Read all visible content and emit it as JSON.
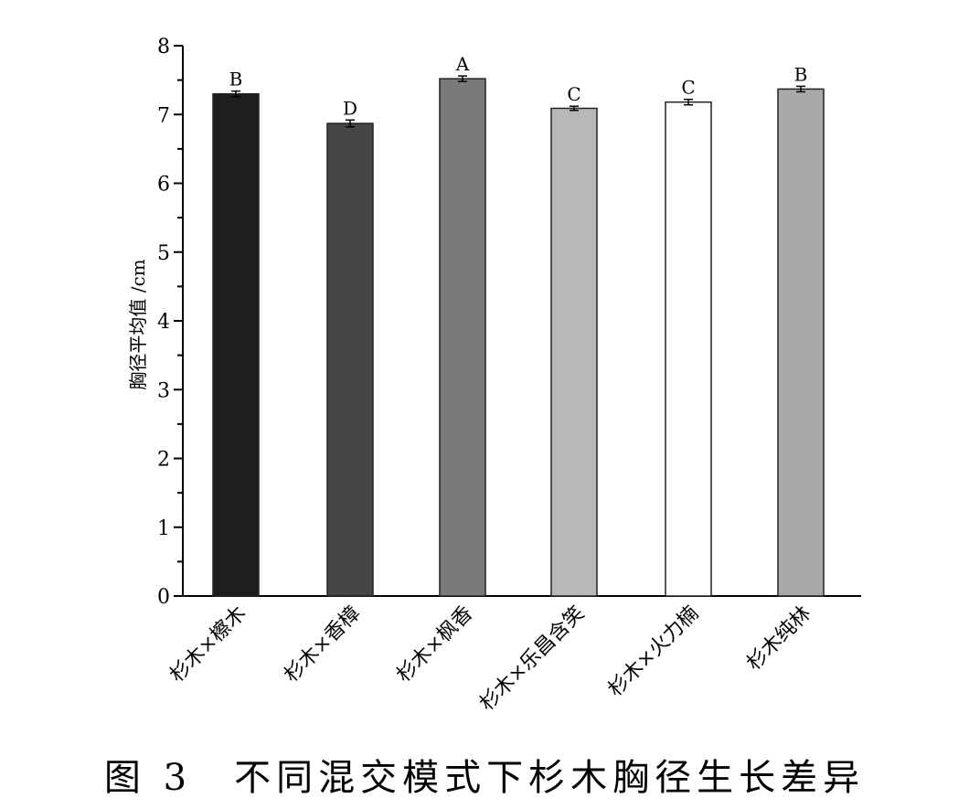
{
  "chart_data": {
    "type": "bar",
    "ylabel": "胸径平均值 /cm",
    "ylim": [
      0,
      8
    ],
    "yticks": [
      0,
      1,
      2,
      3,
      4,
      5,
      6,
      7,
      8
    ],
    "categories": [
      "杉木×檫木",
      "杉木×香樟",
      "杉木×枫香",
      "杉木×乐昌含笑",
      "杉木×火力楠",
      "杉木纯林"
    ],
    "values": [
      7.3,
      6.87,
      7.52,
      7.09,
      7.18,
      7.37
    ],
    "errors": [
      0.04,
      0.05,
      0.04,
      0.03,
      0.04,
      0.04
    ],
    "significance": [
      "B",
      "D",
      "A",
      "C",
      "C",
      "B"
    ],
    "bar_colors": [
      "#1e1e1e",
      "#454545",
      "#7a7a7a",
      "#b8b8b8",
      "#ffffff",
      "#a8a8a8"
    ],
    "grid": false
  },
  "caption": "图 3　不同混交模式下杉木胸径生长差异"
}
